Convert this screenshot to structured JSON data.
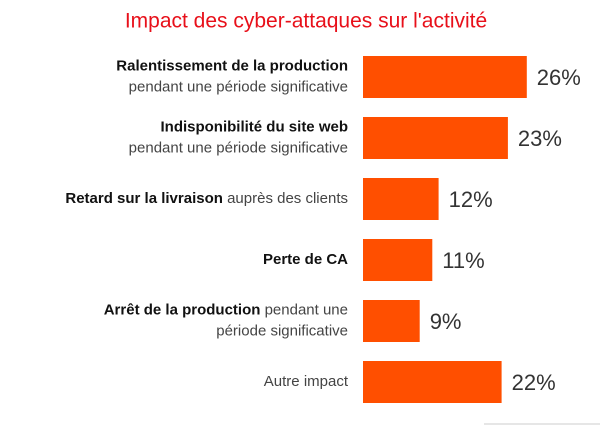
{
  "chart_data": {
    "type": "bar",
    "orientation": "horizontal",
    "title": "Impact des cyber-attaques sur l'activité",
    "categories": [
      [
        [
          {
            "text": "Ralentissement de la production",
            "bold": true
          }
        ],
        [
          {
            "text": "pendant une période significative"
          }
        ]
      ],
      [
        [
          {
            "text": "Indisponibilité du site web",
            "bold": true
          }
        ],
        [
          {
            "text": "pendant une période significative"
          }
        ]
      ],
      [
        [
          {
            "text": "Retard sur la livraison",
            "bold": true
          },
          {
            "text": " auprès des clients"
          }
        ]
      ],
      [
        [
          {
            "text": "Perte de CA",
            "bold": true
          }
        ]
      ],
      [
        [
          {
            "text": "Arrêt de la production",
            "bold": true
          },
          {
            "text": " pendant une"
          }
        ],
        [
          {
            "text": "période significative"
          }
        ]
      ],
      [
        [
          {
            "text": "Autre impact"
          }
        ]
      ]
    ],
    "values": [
      26,
      23,
      12,
      11,
      9,
      22
    ],
    "value_labels": [
      "26%",
      "23%",
      "12%",
      "11%",
      "9%",
      "22%"
    ],
    "color": "#ff4f00",
    "xlim": [
      0,
      30
    ]
  }
}
